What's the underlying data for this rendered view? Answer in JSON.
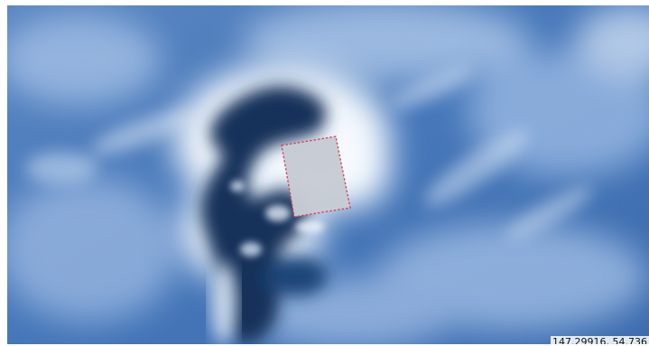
{
  "map": {
    "type": "satellite-imagery",
    "colors": {
      "water": "#4a78b8",
      "water_deep": "#2e5a9c",
      "ice": "#e9f1fb",
      "shadow": "#14325a",
      "selection_fill": "#c7ccd4",
      "selection_border": "#d2455a"
    },
    "coordinate_readout": "147.29916, 54.736"
  }
}
